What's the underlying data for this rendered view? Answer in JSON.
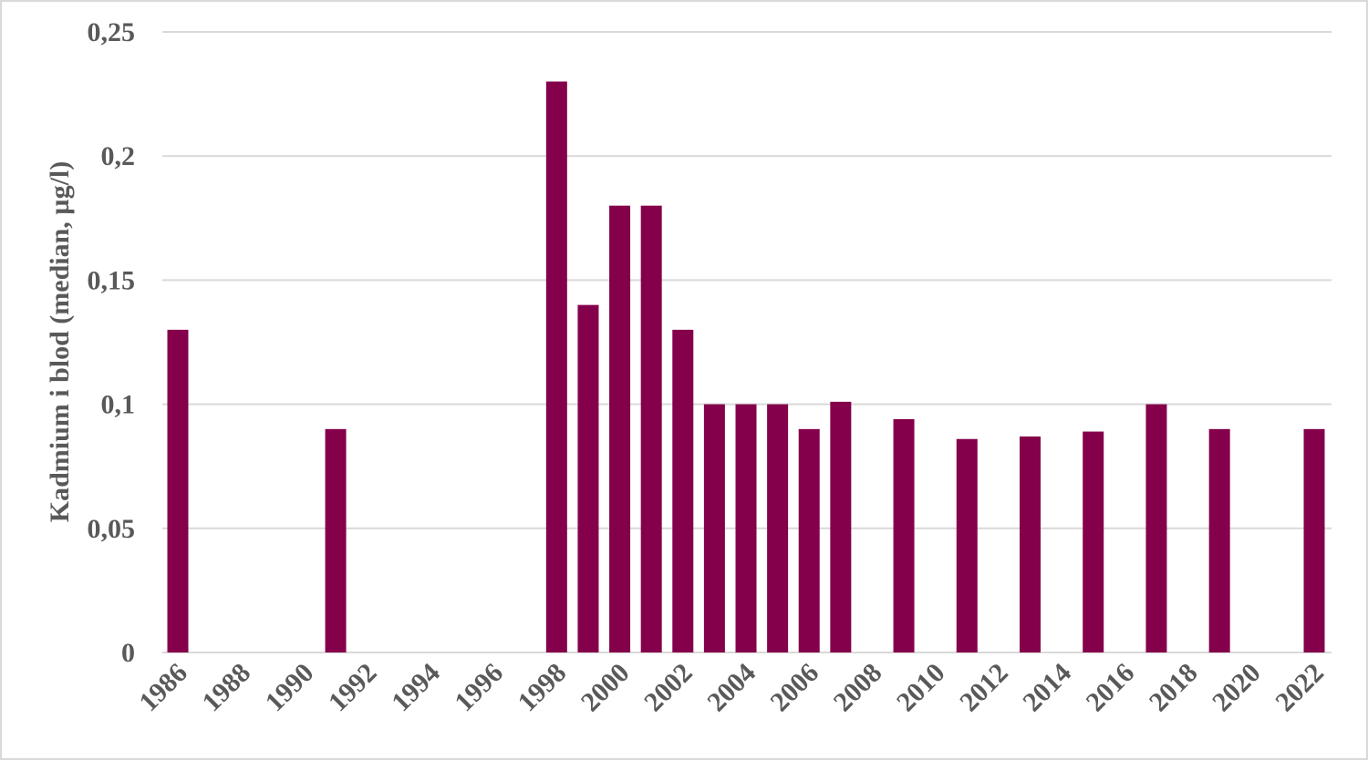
{
  "chart_data": {
    "type": "bar",
    "title": "",
    "xlabel": "",
    "ylabel": "Kadmium i blod (median, µg/l)",
    "ylim": [
      0,
      0.25
    ],
    "y_ticks": [
      "0",
      "0,05",
      "0,1",
      "0,15",
      "0,2",
      "0,25"
    ],
    "y_tick_values": [
      0,
      0.05,
      0.1,
      0.15,
      0.2,
      0.25
    ],
    "grid": true,
    "legend": null,
    "bar_color": "#85004b",
    "x_tick_labels": [
      "1986",
      "1988",
      "1990",
      "1992",
      "1994",
      "1996",
      "1998",
      "2000",
      "2002",
      "2004",
      "2006",
      "2008",
      "2010",
      "2012",
      "2014",
      "2016",
      "2018",
      "2020",
      "2022"
    ],
    "categories": [
      "1986",
      "1987",
      "1988",
      "1989",
      "1990",
      "1991",
      "1992",
      "1993",
      "1994",
      "1995",
      "1996",
      "1997",
      "1998",
      "1999",
      "2000",
      "2001",
      "2002",
      "2003",
      "2004",
      "2005",
      "2006",
      "2007",
      "2008",
      "2009",
      "2010",
      "2011",
      "2012",
      "2013",
      "2014",
      "2015",
      "2016",
      "2017",
      "2018",
      "2019",
      "2020",
      "2021",
      "2022"
    ],
    "values": [
      0.13,
      null,
      null,
      null,
      null,
      0.09,
      null,
      null,
      null,
      null,
      null,
      null,
      0.23,
      0.14,
      0.18,
      0.18,
      0.13,
      0.1,
      0.1,
      0.1,
      0.09,
      0.101,
      null,
      0.094,
      null,
      0.086,
      null,
      0.087,
      null,
      0.089,
      null,
      0.1,
      null,
      0.09,
      null,
      null,
      0.09
    ]
  }
}
